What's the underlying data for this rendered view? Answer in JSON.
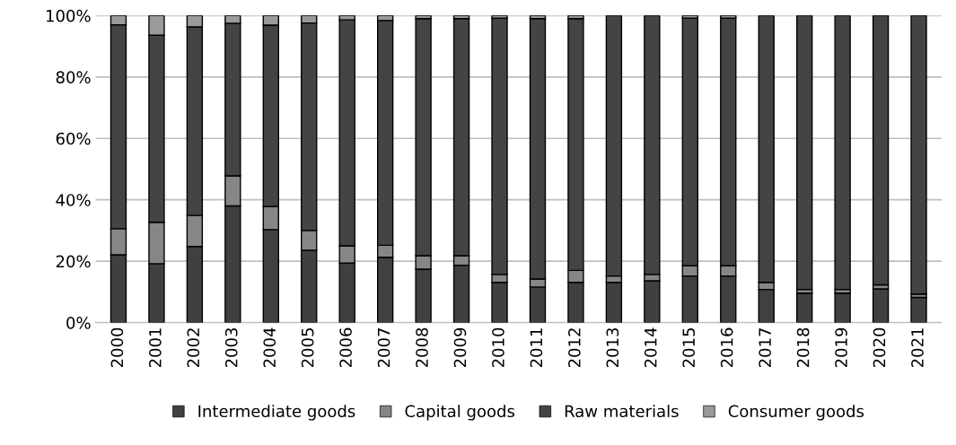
{
  "chart_data": {
    "type": "bar",
    "stacked": true,
    "categories": [
      "2000",
      "2001",
      "2002",
      "2003",
      "2004",
      "2005",
      "2006",
      "2007",
      "2008",
      "2009",
      "2010",
      "2011",
      "2012",
      "2013",
      "2014",
      "2015",
      "2016",
      "2017",
      "2018",
      "2019",
      "2020",
      "2021"
    ],
    "series": [
      {
        "name": "Intermediate goods",
        "color": "#404040",
        "values": [
          22.1,
          19.2,
          24.8,
          38.0,
          30.3,
          23.6,
          19.4,
          21.3,
          17.4,
          18.7,
          13.1,
          11.6,
          13.1,
          13.1,
          13.6,
          15.2,
          15.2,
          10.8,
          9.6,
          9.6,
          11.0,
          8.2
        ]
      },
      {
        "name": "Capital goods",
        "color": "#868686",
        "values": [
          8.5,
          13.5,
          10.1,
          9.8,
          7.5,
          6.4,
          5.6,
          3.9,
          4.4,
          3.1,
          2.6,
          2.6,
          3.9,
          2.1,
          2.1,
          3.3,
          3.3,
          2.3,
          1.2,
          1.2,
          1.3,
          1.1
        ]
      },
      {
        "name": "Raw materials",
        "color": "#444444",
        "values": [
          66.4,
          60.9,
          61.4,
          49.7,
          59.1,
          67.6,
          73.6,
          73.2,
          77.2,
          77.2,
          83.5,
          84.8,
          82.0,
          84.8,
          84.3,
          80.7,
          80.7,
          86.9,
          89.2,
          89.2,
          87.7,
          90.7
        ]
      },
      {
        "name": "Consumer goods",
        "color": "#9a9a9a",
        "values": [
          3.0,
          6.4,
          3.7,
          2.5,
          3.1,
          2.4,
          1.4,
          1.6,
          1.0,
          1.0,
          0.8,
          1.0,
          1.0,
          0,
          0,
          0.8,
          0.8,
          0,
          0,
          0,
          0,
          0
        ]
      }
    ],
    "ylim": [
      0,
      100
    ],
    "yticks": [
      {
        "value": 0,
        "label": "0%"
      },
      {
        "value": 20,
        "label": "20%"
      },
      {
        "value": 40,
        "label": "40%"
      },
      {
        "value": 60,
        "label": "60%"
      },
      {
        "value": 80,
        "label": "80%"
      },
      {
        "value": 100,
        "label": "100%"
      }
    ],
    "grid": "y",
    "legend": "bottom"
  }
}
